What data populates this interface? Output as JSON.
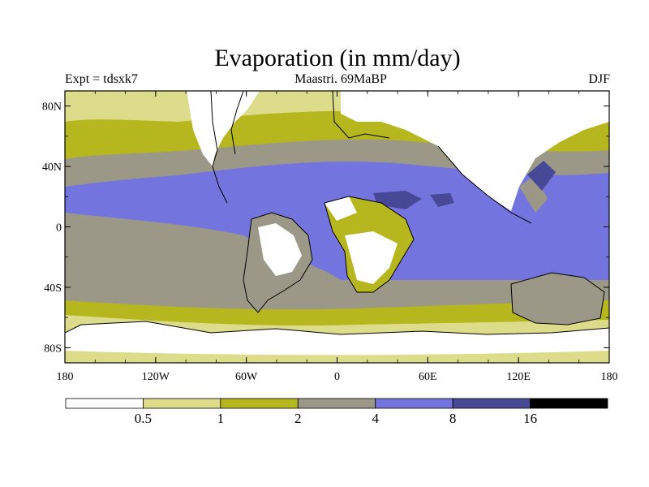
{
  "title": "Evaporation (in mm/day)",
  "experiment": "Expt = tdsxk7",
  "period": "Maastri.  69MaBP",
  "season": "DJF",
  "map": {
    "lon_ticks": [
      "180",
      "120W",
      "60W",
      "0",
      "60E",
      "120E",
      "180"
    ],
    "lat_ticks": [
      "80N",
      "40N",
      "0",
      "40S",
      "80S"
    ]
  },
  "legend": {
    "labels": [
      "0.5",
      "1",
      "2",
      "4",
      "8",
      "16"
    ],
    "colors": [
      "#ffffff",
      "#dcdc8a",
      "#b6b61e",
      "#9c9888",
      "#7474de",
      "#474896",
      "#000000"
    ]
  }
}
